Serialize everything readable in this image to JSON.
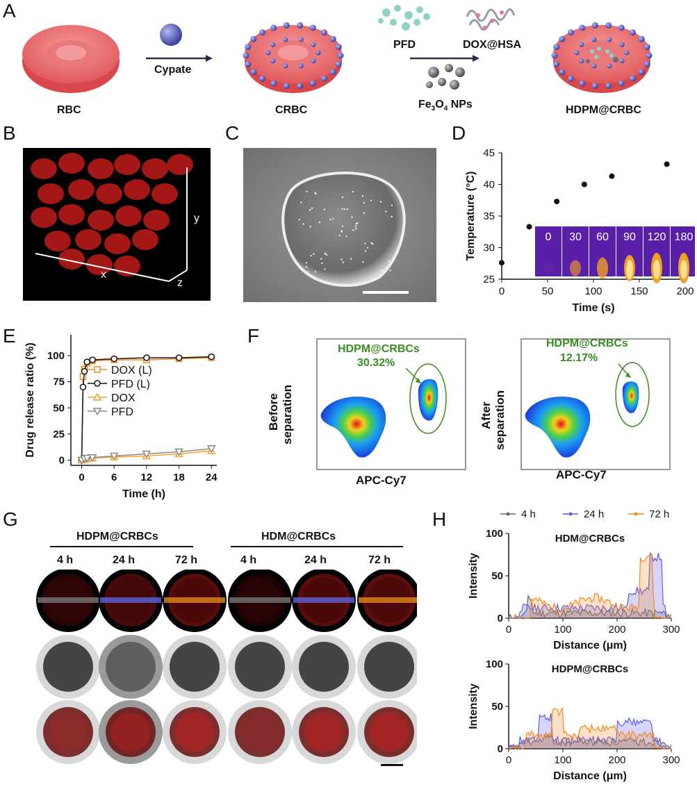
{
  "panels": {
    "A": "A",
    "B": "B",
    "C": "C",
    "D": "D",
    "E": "E",
    "F": "F",
    "G": "G",
    "H": "H"
  },
  "scheme": {
    "rbc": "RBC",
    "cypate": "Cypate",
    "crbc": "CRBC",
    "pfd": "PFD",
    "doxhsa": "DOX@HSA",
    "fe_main": "Fe",
    "fe_sub3": "3",
    "fe_o": "O",
    "fe_sub4": "4",
    "fe_tail": " NPs",
    "hdpm": "HDPM@CRBC"
  },
  "panelB": {
    "x": "x",
    "y": "y",
    "z": "z"
  },
  "chart_D": {
    "type": "scatter",
    "xlabel": "Time (s)",
    "ylabel": "Temperature (°C)",
    "xlim": [
      0,
      200
    ],
    "ylim": [
      25,
      45
    ],
    "xticks": [
      0,
      50,
      100,
      150,
      200
    ],
    "yticks": [
      25,
      30,
      35,
      40,
      45
    ],
    "inset_labels": [
      "0",
      "30",
      "60",
      "90",
      "120",
      "180"
    ],
    "x": [
      0,
      30,
      60,
      90,
      120,
      180
    ],
    "y": [
      27.6,
      33.3,
      37.3,
      40.0,
      41.3,
      43.2
    ]
  },
  "chart_E": {
    "type": "line",
    "xlabel": "Time (h)",
    "ylabel": "Drug release ratio (%)",
    "xlim": [
      -2,
      25
    ],
    "ylim": [
      -5,
      120
    ],
    "xticks": [
      0,
      6,
      12,
      18,
      24
    ],
    "yticks": [
      0,
      25,
      50,
      75,
      100
    ],
    "series": [
      {
        "name": "DOX (L)",
        "color": "#f28a1e",
        "marker": "square",
        "x": [
          0,
          0.25,
          0.5,
          1,
          2,
          6,
          12,
          18,
          24
        ],
        "y": [
          0,
          80,
          87,
          93,
          95,
          96,
          96,
          97,
          98
        ]
      },
      {
        "name": "PFD (L)",
        "color": "#111111",
        "marker": "circle",
        "x": [
          0,
          0.25,
          0.5,
          1,
          2,
          6,
          12,
          18,
          24
        ],
        "y": [
          0,
          70,
          85,
          94,
          96,
          97,
          98,
          98,
          99
        ]
      },
      {
        "name": "DOX",
        "color": "#f2a51e",
        "marker": "triangle",
        "x": [
          0,
          0.5,
          1,
          2,
          6,
          12,
          18,
          24
        ],
        "y": [
          0,
          1,
          1.5,
          2,
          3,
          4,
          6,
          9
        ]
      },
      {
        "name": "PFD",
        "color": "#888888",
        "marker": "tri-down",
        "x": [
          0,
          0.5,
          1,
          2,
          6,
          12,
          18,
          24
        ],
        "y": [
          0,
          1.5,
          2,
          2.5,
          4,
          6,
          8,
          11
        ]
      }
    ]
  },
  "panelF": {
    "left": {
      "gate": "HDPM@CRBCs",
      "pct": "30.32%",
      "ylabel1": "Before",
      "ylabel2": "separation",
      "xlabel": "APC-Cy7"
    },
    "right": {
      "gate": "HDPM@CRBCs",
      "pct": "12.17%",
      "ylabel1": "After",
      "ylabel2": "separation",
      "xlabel": "APC-Cy7"
    }
  },
  "panelG": {
    "group1": "HDPM@CRBCs",
    "group2": "HDM@CRBCs",
    "times": [
      "4 h",
      "24 h",
      "72 h",
      "4 h",
      "24 h",
      "72 h"
    ]
  },
  "chart_H": {
    "type": "area",
    "legend": [
      "4 h",
      "24 h",
      "72 h"
    ],
    "colors": [
      "#666666",
      "#5a5af2",
      "#f2891e"
    ],
    "plots": [
      {
        "title": "HDM@CRBCs",
        "xlabel": "Distance (μm)",
        "ylabel": "Intensity",
        "xlim": [
          0,
          300
        ],
        "ylim": [
          0,
          100
        ],
        "xticks": [
          0,
          100,
          200,
          300
        ],
        "yticks": [
          0,
          50,
          100
        ]
      },
      {
        "title": "HDPM@CRBCs",
        "xlabel": "Distance (μm)",
        "ylabel": "Intensity",
        "xlim": [
          0,
          300
        ],
        "ylim": [
          0,
          100
        ],
        "xticks": [
          0,
          100,
          200,
          300
        ],
        "yticks": [
          0,
          50,
          100
        ]
      }
    ]
  }
}
